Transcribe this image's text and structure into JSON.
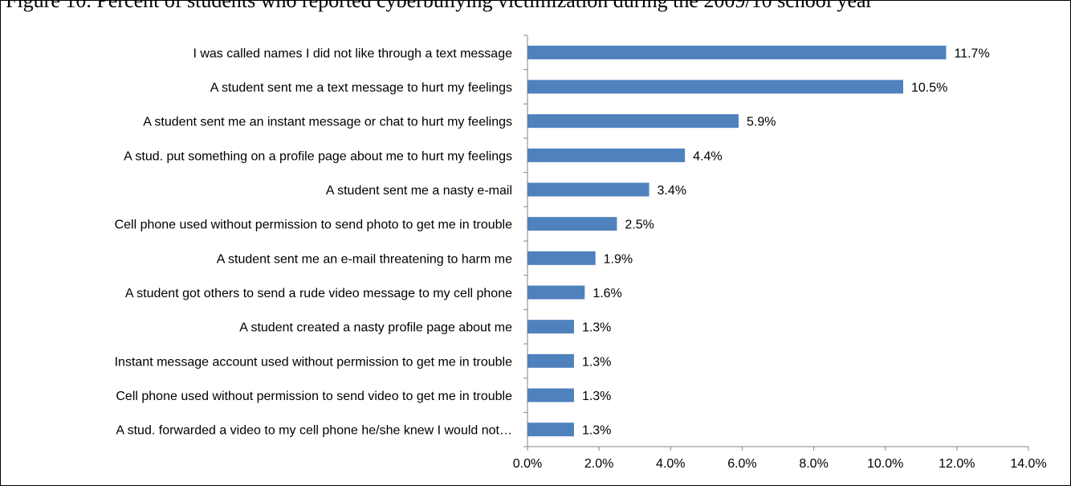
{
  "caption": "Figure 10. Percent of students who reported cyberbullying victimization during the 2009/10 school year",
  "chart_data": {
    "type": "bar",
    "orientation": "horizontal",
    "title": "",
    "xlabel": "",
    "ylabel": "",
    "xlim": [
      0,
      14
    ],
    "ticks": [
      "0.0%",
      "2.0%",
      "4.0%",
      "6.0%",
      "8.0%",
      "10.0%",
      "12.0%",
      "14.0%"
    ],
    "tick_values": [
      0,
      2,
      4,
      6,
      8,
      10,
      12,
      14
    ],
    "grid": false,
    "legend": "none",
    "bar_color": "#4f81bd",
    "categories": [
      "I was called names I did not like through a text message",
      "A student sent me a text message to hurt my feelings",
      "A student sent me an instant message or chat to hurt my feelings",
      "A stud. put something on a profile page about me to hurt my feelings",
      "A student sent me a nasty e-mail",
      "Cell phone used without permission to send photo to get me in trouble",
      "A student sent me an e-mail threatening to harm me",
      "A student got others to send a rude video message to my cell phone",
      "A student created a nasty profile page about me",
      "Instant message account used without permission to get me in trouble",
      "Cell phone used without permission to send video to get me in trouble",
      "A stud. forwarded a video to my cell phone he/she knew I would not…"
    ],
    "values": [
      11.7,
      10.5,
      5.9,
      4.4,
      3.4,
      2.5,
      1.9,
      1.6,
      1.3,
      1.3,
      1.3,
      1.3
    ],
    "value_labels": [
      "11.7%",
      "10.5%",
      "5.9%",
      "4.4%",
      "3.4%",
      "2.5%",
      "1.9%",
      "1.6%",
      "1.3%",
      "1.3%",
      "1.3%",
      "1.3%"
    ]
  }
}
